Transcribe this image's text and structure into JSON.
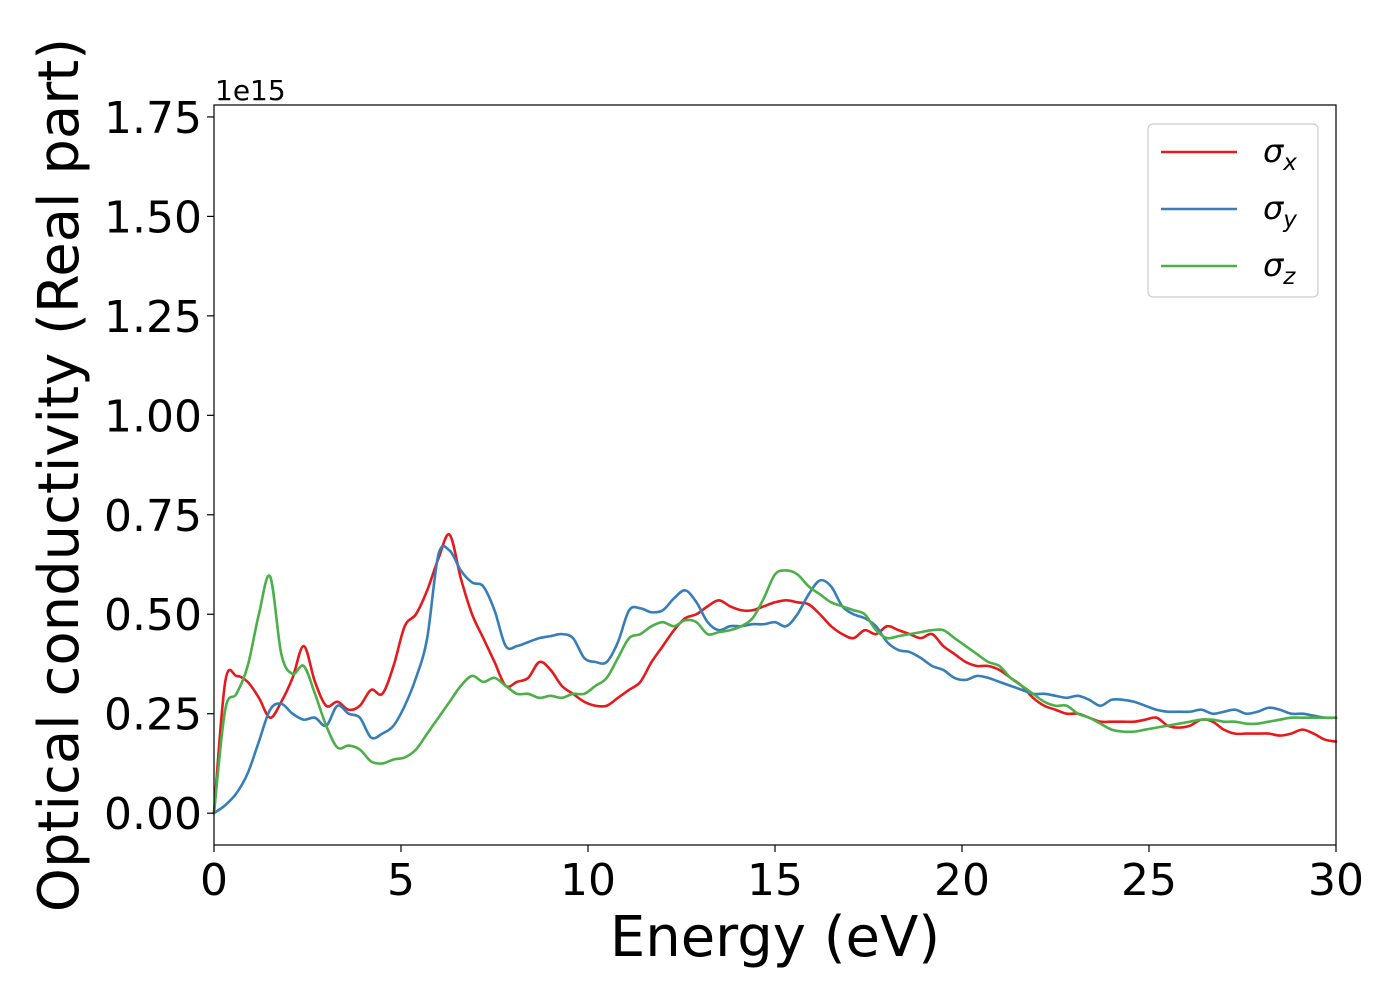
{
  "chart_data": {
    "type": "line",
    "xlabel": "Energy (eV)",
    "ylabel": "Optical conductivity (Real part)",
    "offset_label": "1e15",
    "xlim": [
      0,
      30
    ],
    "ylim": [
      -0.08,
      1.78
    ],
    "xticks": [
      0,
      5,
      10,
      15,
      20,
      25,
      30
    ],
    "xtick_labels": [
      "0",
      "5",
      "10",
      "15",
      "20",
      "25",
      "30"
    ],
    "yticks": [
      0.0,
      0.25,
      0.5,
      0.75,
      1.0,
      1.25,
      1.5,
      1.75
    ],
    "ytick_labels": [
      "0.00",
      "0.25",
      "0.50",
      "0.75",
      "1.00",
      "1.25",
      "1.50",
      "1.75"
    ],
    "grid": false,
    "legend_position": "top-right",
    "series": [
      {
        "name": "σx",
        "symbol": "σ",
        "subscript": "x",
        "color": "#e41a1c",
        "x": [
          0,
          0.3,
          0.6,
          0.9,
          1.2,
          1.5,
          1.8,
          2.1,
          2.4,
          2.7,
          3.0,
          3.3,
          3.6,
          3.9,
          4.2,
          4.5,
          4.8,
          5.1,
          5.4,
          5.7,
          6.0,
          6.3,
          6.6,
          6.9,
          7.2,
          7.5,
          7.8,
          8.1,
          8.4,
          8.7,
          9.0,
          9.3,
          9.6,
          9.9,
          10.2,
          10.5,
          10.8,
          11.1,
          11.4,
          11.7,
          12.0,
          12.3,
          12.6,
          12.9,
          13.2,
          13.5,
          13.8,
          14.1,
          14.4,
          14.7,
          15.0,
          15.3,
          15.6,
          15.9,
          16.2,
          16.5,
          16.8,
          17.1,
          17.4,
          17.7,
          18.0,
          18.3,
          18.6,
          18.9,
          19.2,
          19.5,
          19.8,
          20.1,
          20.4,
          20.7,
          21.0,
          21.3,
          21.6,
          21.9,
          22.2,
          22.5,
          22.8,
          23.1,
          23.4,
          23.7,
          24.0,
          24.3,
          24.6,
          24.9,
          25.2,
          25.5,
          25.8,
          26.1,
          26.4,
          26.7,
          27.0,
          27.3,
          27.6,
          27.9,
          28.2,
          28.5,
          28.8,
          29.1,
          29.4,
          29.7,
          30.0
        ],
        "values": [
          0.0,
          0.33,
          0.345,
          0.33,
          0.29,
          0.24,
          0.28,
          0.34,
          0.42,
          0.33,
          0.27,
          0.28,
          0.26,
          0.27,
          0.31,
          0.3,
          0.37,
          0.47,
          0.5,
          0.56,
          0.64,
          0.7,
          0.59,
          0.5,
          0.44,
          0.38,
          0.32,
          0.33,
          0.34,
          0.38,
          0.36,
          0.32,
          0.3,
          0.28,
          0.27,
          0.27,
          0.29,
          0.31,
          0.33,
          0.38,
          0.42,
          0.46,
          0.49,
          0.5,
          0.52,
          0.535,
          0.52,
          0.51,
          0.51,
          0.52,
          0.53,
          0.535,
          0.53,
          0.525,
          0.5,
          0.47,
          0.45,
          0.44,
          0.46,
          0.45,
          0.47,
          0.46,
          0.45,
          0.44,
          0.45,
          0.42,
          0.4,
          0.38,
          0.37,
          0.37,
          0.36,
          0.34,
          0.32,
          0.29,
          0.27,
          0.26,
          0.25,
          0.25,
          0.24,
          0.23,
          0.23,
          0.23,
          0.23,
          0.235,
          0.24,
          0.22,
          0.215,
          0.22,
          0.235,
          0.23,
          0.21,
          0.2,
          0.2,
          0.2,
          0.2,
          0.195,
          0.2,
          0.21,
          0.2,
          0.185,
          0.18
        ]
      },
      {
        "name": "σy",
        "symbol": "σ",
        "subscript": "y",
        "color": "#377eb8",
        "x": [
          0,
          0.3,
          0.6,
          0.9,
          1.2,
          1.5,
          1.8,
          2.1,
          2.4,
          2.7,
          3.0,
          3.3,
          3.6,
          3.9,
          4.2,
          4.5,
          4.8,
          5.1,
          5.4,
          5.7,
          6.0,
          6.3,
          6.6,
          6.9,
          7.2,
          7.5,
          7.8,
          8.1,
          8.4,
          8.7,
          9.0,
          9.3,
          9.6,
          9.9,
          10.2,
          10.5,
          10.8,
          11.1,
          11.4,
          11.7,
          12.0,
          12.3,
          12.6,
          12.9,
          13.2,
          13.5,
          13.8,
          14.1,
          14.4,
          14.7,
          15.0,
          15.3,
          15.6,
          15.9,
          16.2,
          16.5,
          16.8,
          17.1,
          17.4,
          17.7,
          18.0,
          18.3,
          18.6,
          18.9,
          19.2,
          19.5,
          19.8,
          20.1,
          20.4,
          20.7,
          21.0,
          21.3,
          21.6,
          21.9,
          22.2,
          22.5,
          22.8,
          23.1,
          23.4,
          23.7,
          24.0,
          24.3,
          24.6,
          24.9,
          25.2,
          25.5,
          25.8,
          26.1,
          26.4,
          26.7,
          27.0,
          27.3,
          27.6,
          27.9,
          28.2,
          28.5,
          28.8,
          29.1,
          29.4,
          29.7,
          30.0
        ],
        "values": [
          0.0,
          0.02,
          0.05,
          0.1,
          0.18,
          0.26,
          0.275,
          0.25,
          0.235,
          0.24,
          0.22,
          0.27,
          0.25,
          0.24,
          0.19,
          0.2,
          0.22,
          0.27,
          0.34,
          0.44,
          0.65,
          0.66,
          0.61,
          0.58,
          0.57,
          0.51,
          0.42,
          0.42,
          0.43,
          0.44,
          0.445,
          0.45,
          0.44,
          0.39,
          0.38,
          0.38,
          0.43,
          0.51,
          0.515,
          0.505,
          0.51,
          0.54,
          0.56,
          0.53,
          0.48,
          0.46,
          0.47,
          0.47,
          0.475,
          0.475,
          0.48,
          0.47,
          0.5,
          0.55,
          0.585,
          0.57,
          0.52,
          0.5,
          0.49,
          0.47,
          0.43,
          0.41,
          0.405,
          0.39,
          0.37,
          0.36,
          0.34,
          0.335,
          0.345,
          0.34,
          0.33,
          0.32,
          0.31,
          0.3,
          0.3,
          0.295,
          0.29,
          0.295,
          0.285,
          0.27,
          0.285,
          0.285,
          0.28,
          0.27,
          0.26,
          0.255,
          0.255,
          0.255,
          0.26,
          0.25,
          0.255,
          0.26,
          0.25,
          0.255,
          0.265,
          0.26,
          0.25,
          0.25,
          0.245,
          0.24,
          0.24
        ]
      },
      {
        "name": "σz",
        "symbol": "σ",
        "subscript": "z",
        "color": "#4daf4a",
        "x": [
          0,
          0.3,
          0.6,
          0.9,
          1.2,
          1.5,
          1.8,
          2.1,
          2.4,
          2.7,
          3.0,
          3.3,
          3.6,
          3.9,
          4.2,
          4.5,
          4.8,
          5.1,
          5.4,
          5.7,
          6.0,
          6.3,
          6.6,
          6.9,
          7.2,
          7.5,
          7.8,
          8.1,
          8.4,
          8.7,
          9.0,
          9.3,
          9.6,
          9.9,
          10.2,
          10.5,
          10.8,
          11.1,
          11.4,
          11.7,
          12.0,
          12.3,
          12.6,
          12.9,
          13.2,
          13.5,
          13.8,
          14.1,
          14.4,
          14.7,
          15.0,
          15.3,
          15.6,
          15.9,
          16.2,
          16.5,
          16.8,
          17.1,
          17.4,
          17.7,
          18.0,
          18.3,
          18.6,
          18.9,
          19.2,
          19.5,
          19.8,
          20.1,
          20.4,
          20.7,
          21.0,
          21.3,
          21.6,
          21.9,
          22.2,
          22.5,
          22.8,
          23.1,
          23.4,
          23.7,
          24.0,
          24.3,
          24.6,
          24.9,
          25.2,
          25.5,
          25.8,
          26.1,
          26.4,
          26.7,
          27.0,
          27.3,
          27.6,
          27.9,
          28.2,
          28.5,
          28.8,
          29.1,
          29.4,
          29.7,
          30.0
        ],
        "values": [
          0.0,
          0.26,
          0.3,
          0.37,
          0.5,
          0.595,
          0.4,
          0.35,
          0.37,
          0.3,
          0.22,
          0.165,
          0.17,
          0.16,
          0.13,
          0.125,
          0.135,
          0.14,
          0.16,
          0.2,
          0.24,
          0.28,
          0.32,
          0.345,
          0.33,
          0.34,
          0.32,
          0.3,
          0.3,
          0.29,
          0.295,
          0.29,
          0.3,
          0.3,
          0.32,
          0.34,
          0.39,
          0.44,
          0.45,
          0.47,
          0.48,
          0.47,
          0.485,
          0.48,
          0.45,
          0.455,
          0.46,
          0.47,
          0.49,
          0.54,
          0.6,
          0.61,
          0.6,
          0.57,
          0.55,
          0.53,
          0.52,
          0.51,
          0.5,
          0.46,
          0.44,
          0.445,
          0.45,
          0.455,
          0.46,
          0.46,
          0.44,
          0.42,
          0.4,
          0.38,
          0.37,
          0.34,
          0.32,
          0.3,
          0.28,
          0.27,
          0.27,
          0.25,
          0.24,
          0.225,
          0.21,
          0.205,
          0.205,
          0.21,
          0.215,
          0.22,
          0.225,
          0.23,
          0.235,
          0.235,
          0.23,
          0.23,
          0.225,
          0.225,
          0.23,
          0.235,
          0.24,
          0.24,
          0.24,
          0.24,
          0.24
        ]
      }
    ]
  }
}
